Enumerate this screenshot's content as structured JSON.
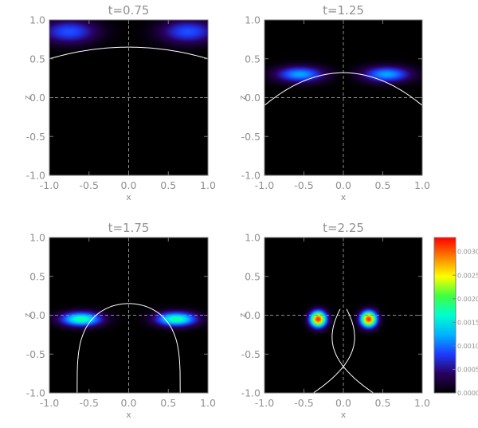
{
  "chart_data": [
    {
      "type": "heatmap",
      "title": "t=0.75",
      "xlabel": "x",
      "ylabel": "z",
      "xlim": [
        -1.0,
        1.0
      ],
      "ylim": [
        -1.0,
        1.0
      ],
      "xticks": [
        "-1.0",
        "-0.5",
        "0.0",
        "0.5",
        "1.0"
      ],
      "yticks": [
        "-1.0",
        "-0.5",
        "0.0",
        "0.5",
        "1.0"
      ],
      "peak_value": 0.0009,
      "separatrix": {
        "apex_z": 0.65,
        "edge_z": 0.5
      },
      "lobes": [
        {
          "x": -0.75,
          "z": 0.85,
          "sx": 0.35,
          "sz": 0.15
        },
        {
          "x": 0.75,
          "z": 0.85,
          "sx": 0.35,
          "sz": 0.15
        }
      ]
    },
    {
      "type": "heatmap",
      "title": "t=1.25",
      "xlabel": "x",
      "ylabel": "z",
      "xlim": [
        -1.0,
        1.0
      ],
      "ylim": [
        -1.0,
        1.0
      ],
      "xticks": [
        "-1.0",
        "-0.5",
        "0.0",
        "0.5",
        "1.0"
      ],
      "yticks": [
        "-1.0",
        "-0.5",
        "0.0",
        "0.5",
        "1.0"
      ],
      "peak_value": 0.0012,
      "separatrix": {
        "apex_z": 0.32,
        "edge_z": -0.1
      },
      "lobes": [
        {
          "x": -0.55,
          "z": 0.3,
          "sx": 0.3,
          "sz": 0.1
        },
        {
          "x": 0.55,
          "z": 0.3,
          "sx": 0.3,
          "sz": 0.1
        }
      ]
    },
    {
      "type": "heatmap",
      "title": "t=1.75",
      "xlabel": "x",
      "ylabel": "z",
      "xlim": [
        -1.0,
        1.0
      ],
      "ylim": [
        -1.0,
        1.0
      ],
      "xticks": [
        "-1.0",
        "-0.5",
        "0.0",
        "0.5",
        "1.0"
      ],
      "yticks": [
        "-1.0",
        "-0.5",
        "0.0",
        "0.5",
        "1.0"
      ],
      "peak_value": 0.0018,
      "separatrix": {
        "apex_z": 0.15,
        "base_half_width": 0.65
      },
      "lobes": [
        {
          "x": -0.6,
          "z": -0.05,
          "sx": 0.25,
          "sz": 0.09
        },
        {
          "x": 0.6,
          "z": -0.05,
          "sx": 0.25,
          "sz": 0.09
        }
      ]
    },
    {
      "type": "heatmap",
      "title": "t=2.25",
      "xlabel": "x",
      "ylabel": "z",
      "xlim": [
        -1.0,
        1.0
      ],
      "ylim": [
        -1.0,
        1.0
      ],
      "xticks": [
        "-1.0",
        "-0.5",
        "0.0",
        "0.5",
        "1.0"
      ],
      "yticks": [
        "-1.0",
        "-0.5",
        "0.0",
        "0.5",
        "1.0"
      ],
      "peak_value": 0.0032,
      "separatrix": {
        "apex_z": 0.08,
        "cross_z": -0.78,
        "base_half_width": 0.35
      },
      "lobes": [
        {
          "x": -0.32,
          "z": -0.05,
          "sx": 0.1,
          "sz": 0.1
        },
        {
          "x": 0.32,
          "z": -0.05,
          "sx": 0.1,
          "sz": 0.1
        }
      ]
    }
  ],
  "colorbar": {
    "range": [
      0.0,
      0.0033
    ],
    "tick_values": [
      0.0,
      0.0005,
      0.001,
      0.0015,
      0.002,
      0.0025,
      0.003
    ],
    "tick_labels": [
      "0.0000",
      "0.0005",
      "0.0010",
      "0.0015",
      "0.0020",
      "0.0025",
      "0.0030"
    ],
    "colormap": [
      "#000000",
      "#2a0060",
      "#1e3cff",
      "#00b4ff",
      "#00ffd0",
      "#40ff40",
      "#ffff00",
      "#ff8000",
      "#ff0000"
    ]
  }
}
